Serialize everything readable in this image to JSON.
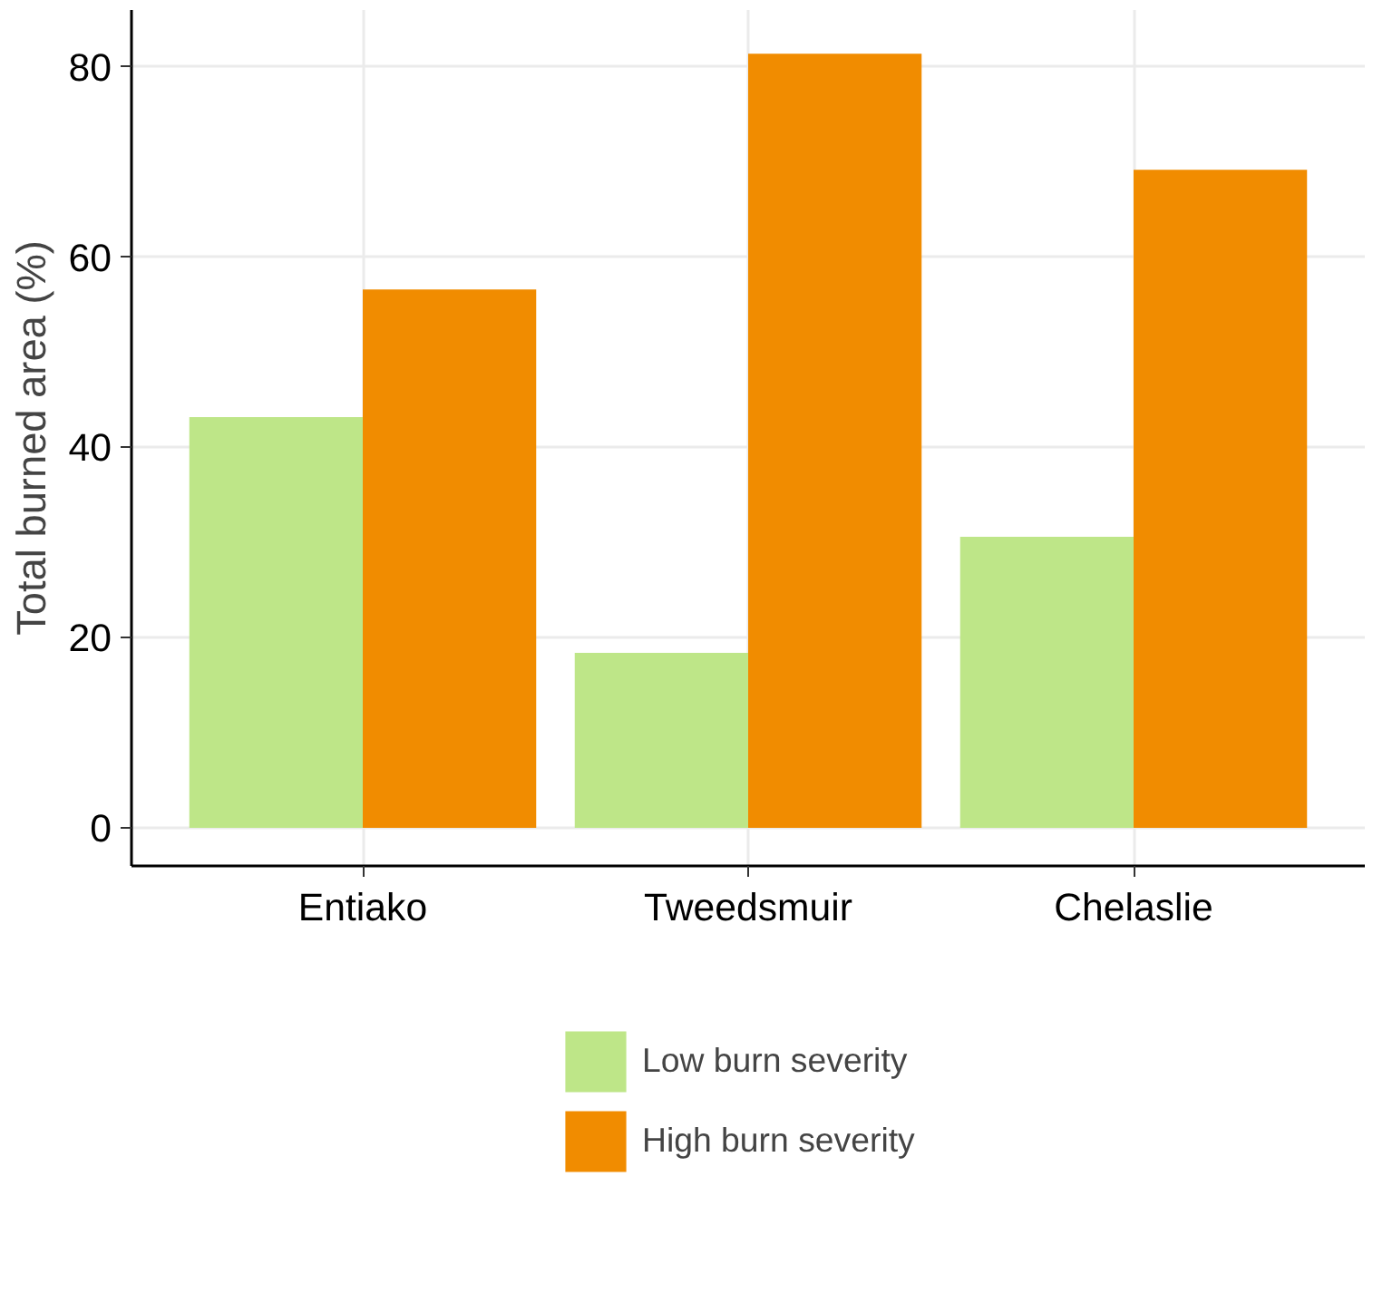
{
  "chart_data": {
    "type": "bar",
    "ylabel": "Total burned area (%)",
    "categories": [
      "Entiako",
      "Tweedsmuir",
      "Chelaslie"
    ],
    "series": [
      {
        "name": "Low burn severity",
        "color": "#bee688",
        "values": [
          43.2,
          18.4,
          30.6
        ]
      },
      {
        "name": "High burn severity",
        "color": "#f18c00",
        "values": [
          56.6,
          81.4,
          69.2
        ]
      }
    ],
    "ylim": [
      -4,
      86
    ],
    "yticks": [
      0,
      20,
      40,
      60,
      80
    ],
    "grid": true,
    "legend": "bottom"
  }
}
